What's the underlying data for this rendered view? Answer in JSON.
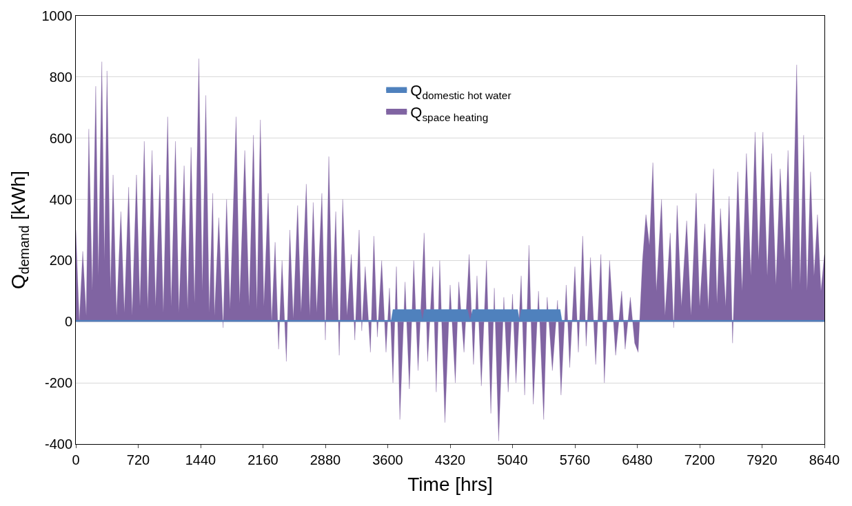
{
  "chart_data": {
    "type": "area",
    "xlabel": "Time [hrs]",
    "ylabel": "Q$_{demand}$ [kWh]",
    "xlim": [
      0,
      8640
    ],
    "xticks": [
      0,
      720,
      1440,
      2160,
      2880,
      3600,
      4320,
      5040,
      5760,
      6480,
      7200,
      7920,
      8640
    ],
    "ylim": [
      -400,
      1000
    ],
    "yticks": [
      -400,
      -200,
      0,
      200,
      400,
      600,
      800,
      1000
    ],
    "grid": "y",
    "legend": "top",
    "series": [
      {
        "name": "Q$_{space heating}$",
        "color": "#8064a2",
        "x": [
          0,
          40,
          80,
          120,
          150,
          190,
          230,
          260,
          300,
          330,
          360,
          400,
          430,
          470,
          520,
          560,
          610,
          650,
          700,
          740,
          790,
          830,
          880,
          920,
          970,
          1010,
          1060,
          1100,
          1150,
          1190,
          1250,
          1290,
          1330,
          1370,
          1420,
          1460,
          1500,
          1540,
          1580,
          1600,
          1650,
          1700,
          1740,
          1780,
          1850,
          1890,
          1950,
          2000,
          2050,
          2090,
          2130,
          2170,
          2220,
          2260,
          2300,
          2340,
          2380,
          2430,
          2470,
          2510,
          2560,
          2600,
          2660,
          2700,
          2740,
          2780,
          2840,
          2880,
          2920,
          2960,
          3000,
          3040,
          3080,
          3130,
          3180,
          3220,
          3270,
          3300,
          3340,
          3400,
          3440,
          3480,
          3530,
          3580,
          3620,
          3660,
          3700,
          3740,
          3800,
          3850,
          3900,
          3950,
          4020,
          4060,
          4120,
          4160,
          4200,
          4260,
          4320,
          4380,
          4420,
          4480,
          4540,
          4590,
          4630,
          4680,
          4740,
          4790,
          4830,
          4880,
          4940,
          4990,
          5040,
          5080,
          5140,
          5180,
          5230,
          5280,
          5340,
          5400,
          5440,
          5500,
          5560,
          5600,
          5660,
          5700,
          5760,
          5800,
          5850,
          5890,
          5940,
          6000,
          6060,
          6100,
          6160,
          6230,
          6300,
          6340,
          6400,
          6450,
          6490,
          6540,
          6580,
          6620,
          6660,
          6700,
          6760,
          6800,
          6860,
          6900,
          6940,
          6990,
          7050,
          7100,
          7160,
          7200,
          7260,
          7300,
          7360,
          7400,
          7440,
          7500,
          7540,
          7580,
          7640,
          7690,
          7740,
          7790,
          7840,
          7880,
          7930,
          7980,
          8030,
          8080,
          8130,
          8180,
          8220,
          8260,
          8320,
          8360,
          8400,
          8440,
          8480,
          8520,
          8560,
          8600,
          8640
        ],
        "values": [
          300,
          0,
          230,
          20,
          630,
          100,
          770,
          150,
          850,
          200,
          820,
          100,
          480,
          20,
          360,
          30,
          440,
          20,
          480,
          50,
          590,
          40,
          560,
          50,
          480,
          30,
          670,
          50,
          590,
          30,
          510,
          40,
          570,
          60,
          860,
          100,
          740,
          30,
          420,
          20,
          340,
          -20,
          400,
          40,
          670,
          60,
          560,
          50,
          610,
          40,
          660,
          50,
          420,
          0,
          260,
          -90,
          200,
          -130,
          300,
          10,
          380,
          30,
          450,
          20,
          390,
          30,
          420,
          -60,
          540,
          40,
          360,
          -110,
          400,
          20,
          220,
          -60,
          300,
          -30,
          180,
          -100,
          280,
          -50,
          200,
          -100,
          110,
          -200,
          180,
          -320,
          130,
          -220,
          200,
          -160,
          290,
          -130,
          180,
          -230,
          200,
          -330,
          120,
          -200,
          130,
          -100,
          220,
          -140,
          150,
          -210,
          200,
          -300,
          110,
          -390,
          80,
          -230,
          90,
          -200,
          150,
          -240,
          250,
          -270,
          100,
          -320,
          80,
          -160,
          70,
          -240,
          120,
          -150,
          180,
          -100,
          280,
          -80,
          210,
          -140,
          220,
          -200,
          200,
          -110,
          100,
          -90,
          80,
          -70,
          -100,
          200,
          350,
          250,
          520,
          100,
          400,
          20,
          290,
          -20,
          380,
          50,
          330,
          20,
          420,
          50,
          320,
          40,
          500,
          60,
          370,
          50,
          410,
          -70,
          490,
          100,
          550,
          150,
          620,
          200,
          620,
          150,
          550,
          120,
          500,
          200,
          560,
          100,
          840,
          120,
          610,
          100,
          490,
          150,
          350,
          100,
          220
        ]
      },
      {
        "name": "Q$_{domestic hot water}$",
        "color": "#4f81bd",
        "x": [
          0,
          3640,
          3660,
          3980,
          4000,
          4020,
          4520,
          4550,
          4580,
          5100,
          5120,
          5140,
          5590,
          5610,
          8640
        ],
        "values": [
          5,
          5,
          40,
          40,
          5,
          40,
          40,
          5,
          40,
          40,
          5,
          40,
          40,
          5,
          5
        ]
      }
    ]
  }
}
